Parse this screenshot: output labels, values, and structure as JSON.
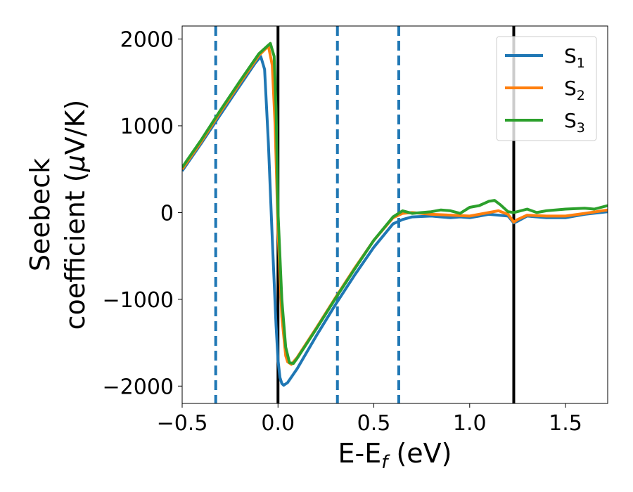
{
  "chart_data": {
    "type": "line",
    "xlabel": "E-E_f (eV)",
    "xlabel_parts": {
      "main": "E-E",
      "sub": "f",
      "unit": " (eV)"
    },
    "ylabel_line1": "Seebeck",
    "ylabel_line2_prefix": "coefficient  (",
    "ylabel_mu": "μ",
    "ylabel_line2_suffix": "V/K)",
    "xlim": [
      -0.5,
      1.72
    ],
    "ylim": [
      -2200,
      2150
    ],
    "x_ticks": [
      -0.5,
      0.0,
      0.5,
      1.0,
      1.5
    ],
    "x_tick_labels": [
      "−0.5",
      "0.0",
      "0.5",
      "1.0",
      "1.5"
    ],
    "y_ticks": [
      -2000,
      -1000,
      0,
      1000,
      2000
    ],
    "y_tick_labels": [
      "−2000",
      "−1000",
      "0",
      "1000",
      "2000"
    ],
    "legend_position": "top-right",
    "vertical_lines": [
      {
        "x": -0.325,
        "style": "dashed",
        "color": "#1f77b4"
      },
      {
        "x": 0.0,
        "style": "solid",
        "color": "#000000"
      },
      {
        "x": 0.31,
        "style": "dashed",
        "color": "#1f77b4"
      },
      {
        "x": 0.63,
        "style": "dashed",
        "color": "#1f77b4"
      },
      {
        "x": 1.23,
        "style": "solid",
        "color": "#000000"
      }
    ],
    "series": [
      {
        "name": "S1",
        "label_main": "S",
        "label_sub": "1",
        "color": "#1f77b4",
        "x": [
          -0.5,
          -0.4,
          -0.3,
          -0.2,
          -0.12,
          -0.09,
          -0.07,
          -0.05,
          -0.03,
          -0.01,
          0.0,
          0.01,
          0.02,
          0.03,
          0.05,
          0.1,
          0.2,
          0.3,
          0.4,
          0.5,
          0.6,
          0.65,
          0.7,
          0.8,
          0.85,
          0.9,
          0.95,
          1.0,
          1.05,
          1.1,
          1.15,
          1.2,
          1.23,
          1.25,
          1.3,
          1.4,
          1.5,
          1.6,
          1.72
        ],
        "y": [
          480,
          800,
          1130,
          1460,
          1720,
          1800,
          1650,
          800,
          -300,
          -1300,
          -1700,
          -1900,
          -1970,
          -1990,
          -1960,
          -1800,
          -1420,
          -1060,
          -720,
          -400,
          -130,
          -80,
          -50,
          -40,
          -50,
          -60,
          -50,
          -60,
          -40,
          -20,
          -30,
          -40,
          -120,
          -100,
          -40,
          -60,
          -60,
          -20,
          10
        ]
      },
      {
        "name": "S2",
        "label_main": "S",
        "label_sub": "2",
        "color": "#ff7f0e",
        "x": [
          -0.5,
          -0.4,
          -0.3,
          -0.2,
          -0.1,
          -0.05,
          -0.03,
          -0.015,
          0.0,
          0.02,
          0.04,
          0.05,
          0.07,
          0.1,
          0.2,
          0.3,
          0.4,
          0.5,
          0.6,
          0.65,
          0.7,
          0.8,
          0.9,
          1.0,
          1.05,
          1.1,
          1.15,
          1.2,
          1.23,
          1.25,
          1.3,
          1.4,
          1.5,
          1.6,
          1.72
        ],
        "y": [
          500,
          820,
          1160,
          1490,
          1810,
          1920,
          1700,
          1000,
          -200,
          -1200,
          -1650,
          -1720,
          -1750,
          -1670,
          -1330,
          -980,
          -640,
          -320,
          -60,
          -10,
          0,
          -20,
          -30,
          -40,
          -20,
          0,
          20,
          -20,
          -110,
          -80,
          -30,
          -40,
          -40,
          -10,
          30
        ]
      },
      {
        "name": "S3",
        "label_main": "S",
        "label_sub": "3",
        "color": "#2ca02c",
        "x": [
          -0.5,
          -0.4,
          -0.3,
          -0.2,
          -0.1,
          -0.04,
          -0.02,
          -0.01,
          0.0,
          0.02,
          0.04,
          0.06,
          0.08,
          0.1,
          0.2,
          0.3,
          0.4,
          0.5,
          0.6,
          0.65,
          0.7,
          0.75,
          0.8,
          0.85,
          0.9,
          0.95,
          1.0,
          1.05,
          1.1,
          1.13,
          1.16,
          1.2,
          1.23,
          1.3,
          1.35,
          1.4,
          1.5,
          1.6,
          1.65,
          1.72
        ],
        "y": [
          520,
          840,
          1180,
          1510,
          1830,
          1950,
          1800,
          1200,
          0,
          -1000,
          -1550,
          -1730,
          -1740,
          -1680,
          -1340,
          -990,
          -650,
          -320,
          -50,
          20,
          -10,
          0,
          10,
          30,
          20,
          -10,
          60,
          80,
          130,
          140,
          90,
          10,
          0,
          40,
          0,
          20,
          40,
          50,
          40,
          80
        ]
      }
    ]
  }
}
